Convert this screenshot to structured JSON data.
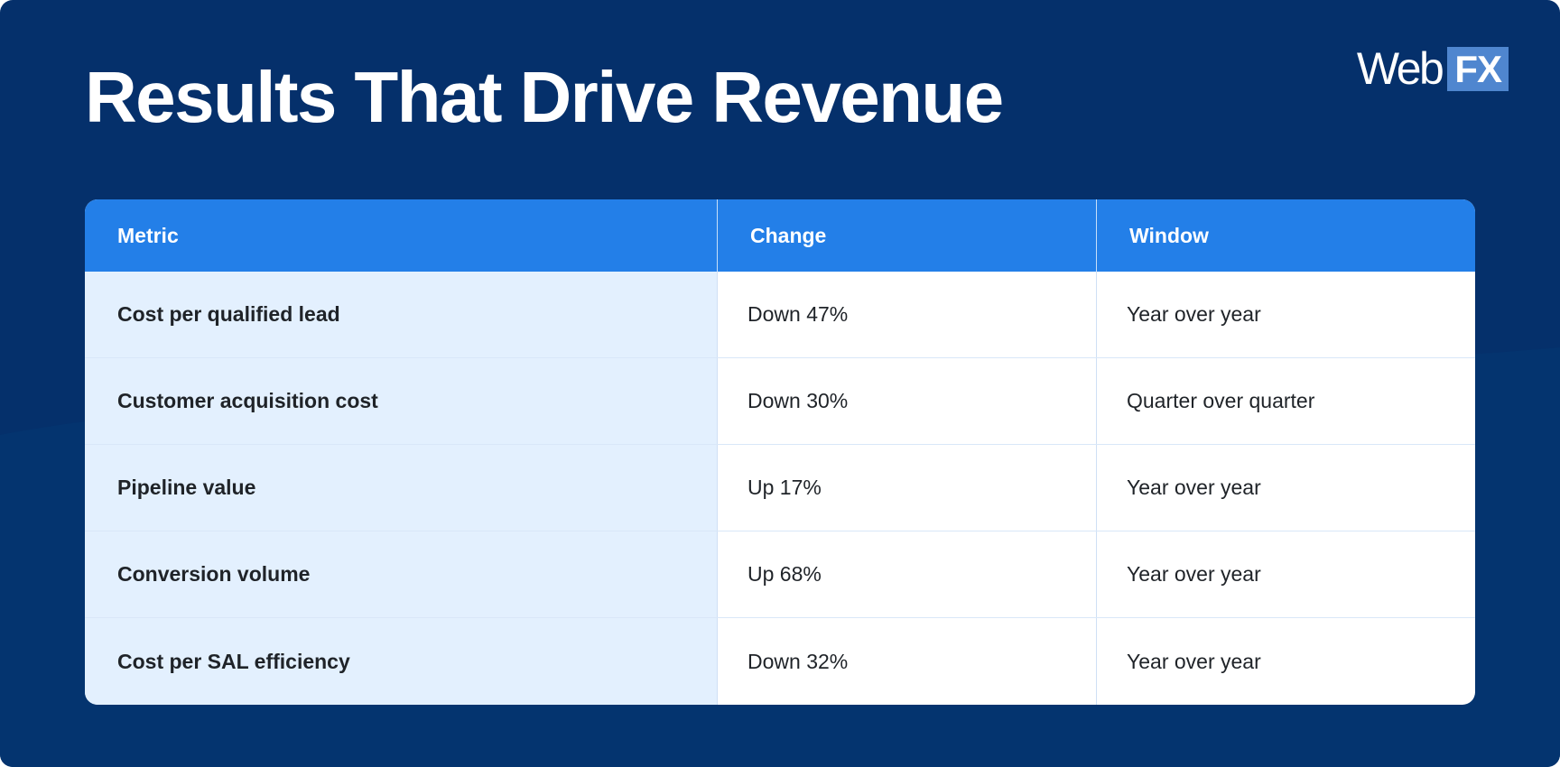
{
  "title": "Results That Drive Revenue",
  "logo": {
    "web": "Web",
    "fx": "FX"
  },
  "colors": {
    "background": "#05306b",
    "header": "#237fe8",
    "metric_column": "#e3f0fe",
    "logo_fx": "#4f86cf"
  },
  "table": {
    "headers": {
      "metric": "Metric",
      "change": "Change",
      "window": "Window"
    },
    "rows": [
      {
        "metric": "Cost per qualified lead",
        "change": "Down 47%",
        "window": "Year over year"
      },
      {
        "metric": "Customer acquisition cost",
        "change": "Down 30%",
        "window": "Quarter over quarter"
      },
      {
        "metric": "Pipeline value",
        "change": "Up 17%",
        "window": "Year over year"
      },
      {
        "metric": "Conversion volume",
        "change": "Up 68%",
        "window": "Year over year"
      },
      {
        "metric": "Cost per SAL efficiency",
        "change": "Down 32%",
        "window": "Year over year"
      }
    ]
  }
}
